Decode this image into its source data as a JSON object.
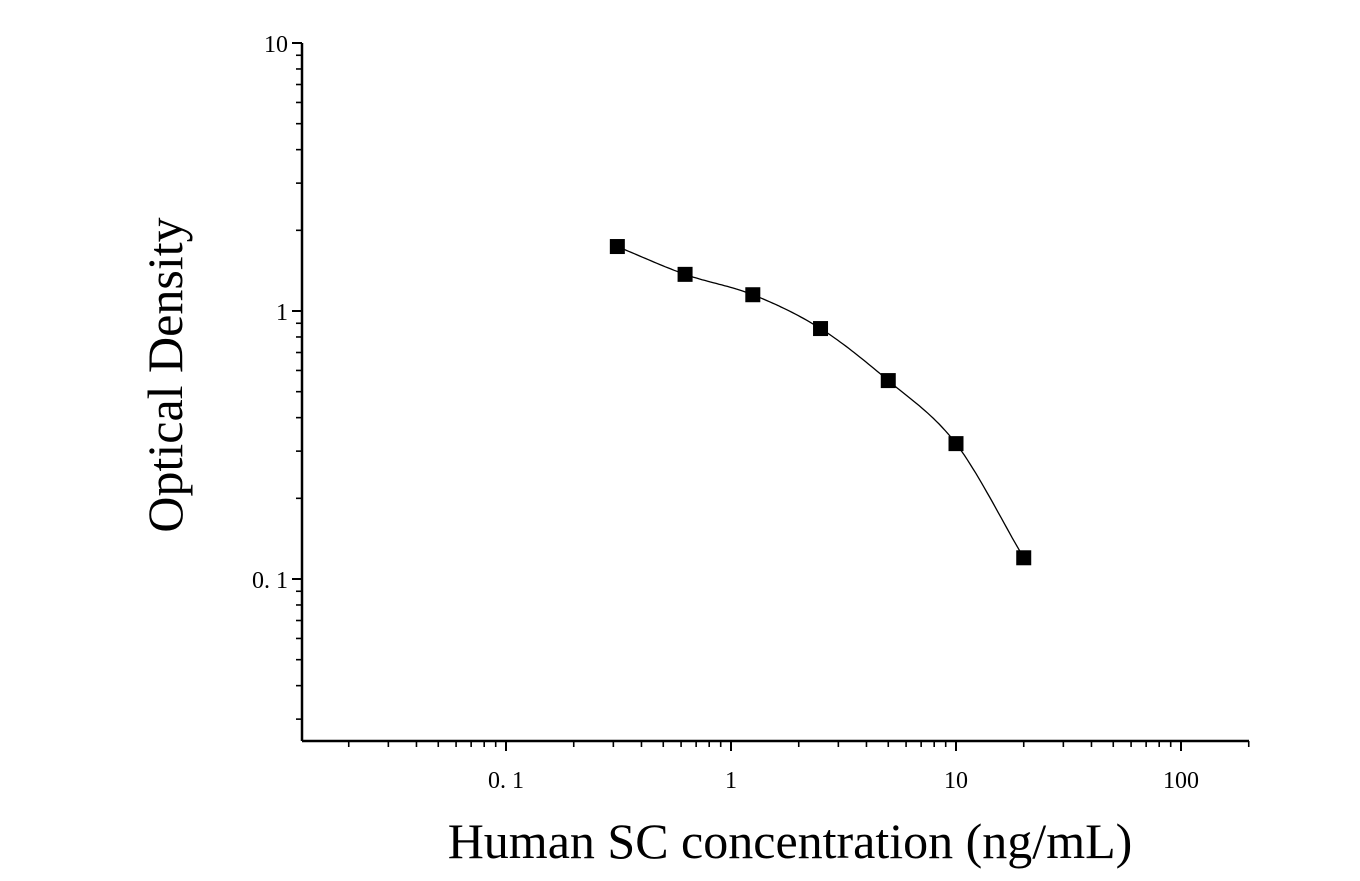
{
  "chart_data": {
    "type": "scatter",
    "title": "",
    "xlabel": "Human SC concentration (ng/mL)",
    "ylabel": "Optical Density",
    "x_scale": "log",
    "y_scale": "log",
    "xlim": [
      0.013,
      200
    ],
    "ylim": [
      0.025,
      10
    ],
    "x_ticks": [
      {
        "value": 0.1,
        "label": "0. 1"
      },
      {
        "value": 1,
        "label": "1"
      },
      {
        "value": 10,
        "label": "10"
      },
      {
        "value": 100,
        "label": "100"
      }
    ],
    "y_ticks": [
      {
        "value": 10,
        "label": "10"
      },
      {
        "value": 1,
        "label": "1"
      },
      {
        "value": 0.1,
        "label": "0. 1"
      }
    ],
    "grid": false,
    "legend": "none",
    "series": [
      {
        "x": [
          0.3125,
          0.625,
          1.25,
          2.5,
          5,
          10,
          20
        ],
        "y": [
          1.74,
          1.37,
          1.15,
          0.86,
          0.55,
          0.32,
          0.12
        ],
        "marker": "square",
        "color": "#000000",
        "fit_line": true
      }
    ]
  }
}
